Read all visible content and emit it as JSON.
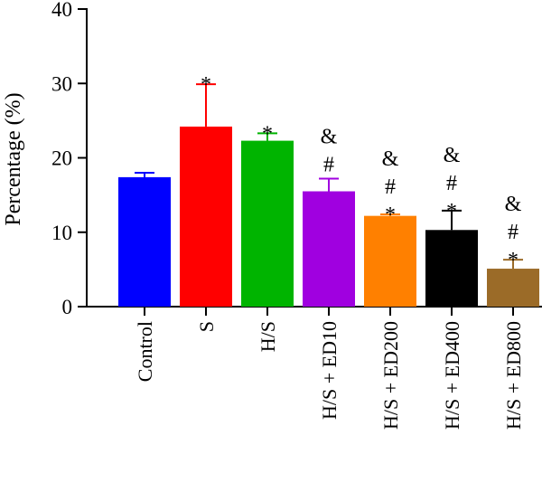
{
  "chart_data": {
    "type": "bar",
    "title": "",
    "xlabel": "",
    "ylabel": "Percentage (%)",
    "ylim": [
      0,
      40
    ],
    "yticks": [
      0,
      10,
      20,
      30,
      40
    ],
    "grid": false,
    "legend": "none",
    "categories": [
      "Control",
      "S",
      "H/S",
      "H/S + ED10",
      "H/S + ED200",
      "H/S + ED400",
      "H/S + ED800"
    ],
    "values": [
      17.4,
      24.2,
      22.3,
      15.5,
      12.2,
      10.3,
      5.1
    ],
    "errors": [
      0.6,
      5.7,
      1.0,
      1.7,
      0.2,
      2.6,
      1.2
    ],
    "colors": [
      "#0000ff",
      "#ff0000",
      "#00b400",
      "#a000e0",
      "#ff8000",
      "#000000",
      "#9b6b28"
    ],
    "annotations": [
      [],
      [
        "*"
      ],
      [
        "*"
      ],
      [
        "#",
        "&"
      ],
      [
        "*",
        "#",
        "&"
      ],
      [
        "*",
        "#",
        "&"
      ],
      [
        "*",
        "#",
        "&"
      ]
    ]
  }
}
